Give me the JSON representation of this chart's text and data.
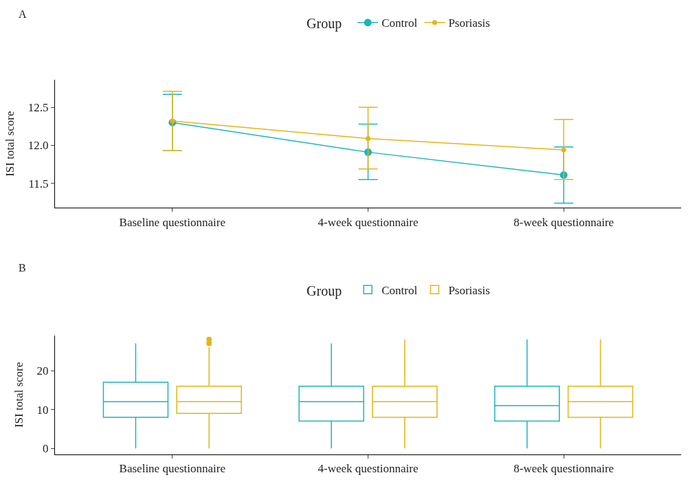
{
  "chart_data": [
    {
      "type": "line",
      "title": "A",
      "ylabel": "ISI total score",
      "legend_title": "Group",
      "legend": "top",
      "marker": "circle",
      "line_style": "solid",
      "categories": [
        "Baseline questionnaire",
        "4-week questionnaire",
        "8-week questionnaire"
      ],
      "ylim": [
        11.18,
        12.86
      ],
      "yticks": [
        {
          "value": 11.5,
          "label": "11.5"
        },
        {
          "value": 12,
          "label": "12.0"
        },
        {
          "value": 12.5,
          "label": "12.5"
        }
      ],
      "series": [
        {
          "name": "Control",
          "color": "#1cb3bd",
          "values": [
            12.3,
            11.91,
            11.61
          ],
          "errors": [
            [
              11.93,
              12.67
            ],
            [
              11.55,
              12.28
            ],
            [
              11.24,
              11.98
            ]
          ]
        },
        {
          "name": "Psoriasis",
          "color": "#e3b514",
          "values": [
            12.32,
            12.09,
            11.94
          ],
          "errors": [
            [
              11.93,
              12.71
            ],
            [
              11.69,
              12.5
            ],
            [
              11.55,
              12.34
            ]
          ]
        }
      ]
    },
    {
      "type": "box",
      "title": "B",
      "ylabel": "ISI total score",
      "legend_title": "Group",
      "legend": "top",
      "categories": [
        "Baseline questionnaire",
        "4-week questionnaire",
        "8-week questionnaire"
      ],
      "ylim": [
        -1.5,
        29
      ],
      "yticks": [
        0,
        10,
        20
      ],
      "series": [
        {
          "name": "Control",
          "color": "#1cb3bd",
          "boxes": [
            {
              "low": 0,
              "q1": 8,
              "median": 12,
              "q3": 17,
              "high": 27
            },
            {
              "low": 0,
              "q1": 7,
              "median": 12,
              "q3": 16,
              "high": 27
            },
            {
              "low": 0,
              "q1": 7,
              "median": 11,
              "q3": 16,
              "high": 28
            }
          ]
        },
        {
          "name": "Psoriasis",
          "color": "#e3b514",
          "boxes": [
            {
              "low": 0,
              "q1": 9,
              "median": 12,
              "q3": 16,
              "high": 26,
              "outliers": [
                27,
                28
              ]
            },
            {
              "low": 0,
              "q1": 8,
              "median": 12,
              "q3": 16,
              "high": 28
            },
            {
              "low": 0,
              "q1": 8,
              "median": 12,
              "q3": 16,
              "high": 28
            }
          ]
        }
      ]
    }
  ]
}
